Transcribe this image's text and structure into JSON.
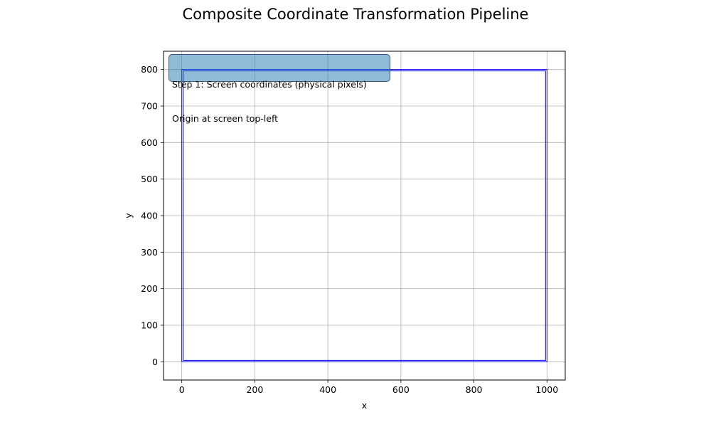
{
  "chart_data": {
    "type": "line",
    "title": "Composite Coordinate Transformation Pipeline",
    "xlabel": "x",
    "ylabel": "y",
    "xlim": [
      -50,
      1050
    ],
    "ylim": [
      -50,
      850
    ],
    "x_ticks": [
      0,
      200,
      400,
      600,
      800,
      1000
    ],
    "y_ticks": [
      0,
      100,
      200,
      300,
      400,
      500,
      600,
      700,
      800
    ],
    "grid": true,
    "annotation": {
      "line1": "Step 1: Screen coordinates (physical pixels)",
      "line2": "Origin at screen top-left"
    },
    "series": [
      {
        "color": "#0000ff",
        "x": [
          0,
          1000,
          1000,
          0,
          0
        ],
        "y": [
          0,
          0,
          800,
          800,
          0
        ]
      },
      {
        "color": "#0000ff",
        "x": [
          0,
          1000,
          1000,
          0,
          0
        ],
        "y": [
          0,
          0,
          800,
          800,
          0
        ],
        "style": "inner-offset"
      }
    ]
  }
}
